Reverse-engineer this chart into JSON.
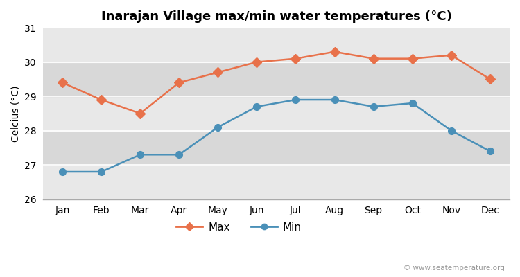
{
  "title": "Inarajan Village max/min water temperatures (°C)",
  "ylabel": "Celcius (°C)",
  "months": [
    "Jan",
    "Feb",
    "Mar",
    "Apr",
    "May",
    "Jun",
    "Jul",
    "Aug",
    "Sep",
    "Oct",
    "Nov",
    "Dec"
  ],
  "max_values": [
    29.4,
    28.9,
    28.5,
    29.4,
    29.7,
    30.0,
    30.1,
    30.3,
    30.1,
    30.1,
    30.2,
    29.5
  ],
  "min_values": [
    26.8,
    26.8,
    27.3,
    27.3,
    28.1,
    28.7,
    28.9,
    28.9,
    28.7,
    28.8,
    28.0,
    27.4
  ],
  "max_color": "#e8714a",
  "min_color": "#4a90b8",
  "fig_bg_color": "#ffffff",
  "plot_bg_color": "#f0f0f0",
  "band_light_color": "#e8e8e8",
  "band_dark_color": "#d8d8d8",
  "ylim": [
    26,
    31
  ],
  "yticks": [
    26,
    27,
    28,
    29,
    30,
    31
  ],
  "watermark": "© www.seatemperature.org",
  "legend_max": "Max",
  "legend_min": "Min",
  "line_width": 1.8,
  "marker_size": 7,
  "title_fontsize": 13,
  "axis_fontsize": 10,
  "legend_fontsize": 11
}
